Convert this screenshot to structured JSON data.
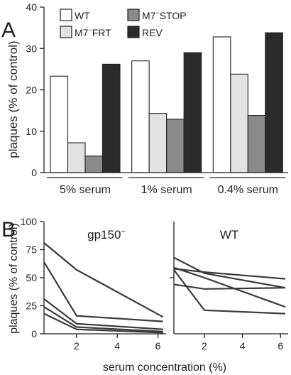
{
  "panels": {
    "a_label": "A",
    "b_label": "B"
  },
  "chart_data": [
    {
      "type": "bar",
      "ylabel": "plaques (% of control)",
      "ylim": [
        0,
        40
      ],
      "yticks": [
        0,
        10,
        20,
        30,
        40
      ],
      "categories": [
        "5% serum",
        "1% serum",
        "0.4% serum"
      ],
      "legend_position": "top-left",
      "series": [
        {
          "name": "WT",
          "name_sup": "",
          "name_rest": "",
          "color": "#ffffff",
          "values": [
            23.3,
            27.0,
            32.8
          ]
        },
        {
          "name": "M7",
          "name_sup": "−",
          "name_rest": "FRT",
          "color": "#e2e2e2",
          "values": [
            7.2,
            14.3,
            23.8
          ]
        },
        {
          "name": "M7",
          "name_sup": "−",
          "name_rest": "STOP",
          "color": "#8a8a8a",
          "values": [
            4.0,
            12.9,
            13.8
          ]
        },
        {
          "name": "REV",
          "name_sup": "",
          "name_rest": "",
          "color": "#2b2b2b",
          "values": [
            26.2,
            29.0,
            33.8
          ]
        }
      ]
    },
    {
      "type": "line",
      "title": "gp150",
      "title_sup": "−",
      "ylabel": "plaques (% of control)",
      "ylim": [
        0,
        100
      ],
      "yticks": [
        0,
        25,
        50,
        75,
        100
      ],
      "xlim": [
        0.4,
        6.4
      ],
      "xticks": [
        2,
        4,
        6
      ],
      "x": [
        0.4,
        2,
        6.25
      ],
      "series": [
        {
          "values": [
            81,
            57,
            15
          ]
        },
        {
          "values": [
            64,
            16,
            11
          ]
        },
        {
          "values": [
            31,
            9,
            4
          ]
        },
        {
          "values": [
            24,
            6,
            2
          ]
        },
        {
          "values": [
            18,
            4,
            1
          ]
        }
      ]
    },
    {
      "type": "line",
      "title": "WT",
      "xlabel": "serum concentration (%)",
      "ylim": [
        0,
        100
      ],
      "xlim": [
        0.4,
        6.4
      ],
      "xticks": [
        2,
        4,
        6
      ],
      "x": [
        0.4,
        2,
        6.25
      ],
      "series": [
        {
          "values": [
            68,
            54,
            41
          ]
        },
        {
          "values": [
            59,
            50,
            24
          ]
        },
        {
          "values": [
            58,
            55,
            49
          ]
        },
        {
          "values": [
            57,
            21,
            18
          ]
        },
        {
          "values": [
            44,
            40,
            41
          ]
        }
      ]
    }
  ]
}
